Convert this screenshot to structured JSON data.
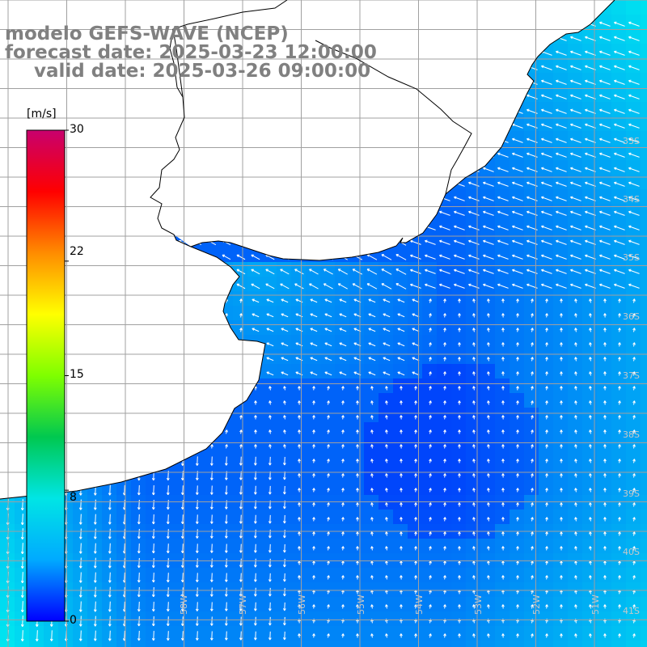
{
  "map": {
    "title_model": "modelo GEFS-WAVE (NCEP)",
    "title_forecast": "forecast date: 2025-03-23 12:00:00",
    "title_valid": "valid date: 2025-03-26 09:00:00"
  },
  "colorbar": {
    "unit_label": "[m/s]",
    "tick_labels": [
      "30",
      "22",
      "15",
      "8",
      "0"
    ],
    "tick_values": [
      30,
      22,
      15,
      8,
      0
    ],
    "min": 0,
    "max": 30,
    "colors": [
      "#0000ff",
      "#00aaff",
      "#00e5e5",
      "#00c850",
      "#7fff00",
      "#ffff00",
      "#ff8c00",
      "#ff0000",
      "#c8006e"
    ]
  },
  "lat_labels": [
    "33S",
    "34S",
    "35S",
    "36S",
    "37S",
    "38S",
    "39S",
    "40S",
    "41S"
  ],
  "lon_labels": [
    "58W",
    "57W",
    "56W",
    "55W",
    "54W",
    "53W",
    "52W",
    "51W"
  ],
  "colors": {
    "land": "#ffffff",
    "grid": "#a0a0a0",
    "coast": "#000000",
    "arrow": "#ffffff",
    "title": "#808080"
  }
}
